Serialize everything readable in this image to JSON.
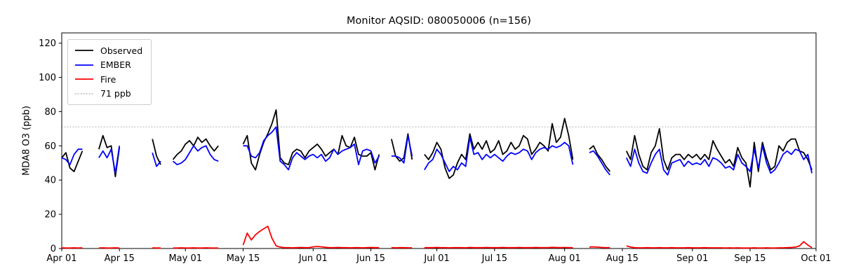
{
  "title": "Monitor AQSID: 080050006 (n=156)",
  "chart_data": {
    "type": "line",
    "title": "Monitor AQSID: 080050006 (n=156)",
    "xlabel": "",
    "ylabel": "MDA8 O3 (ppb)",
    "ylim": [
      0,
      126
    ],
    "yticks": [
      0,
      20,
      40,
      60,
      80,
      100,
      120
    ],
    "x_range_days": 183,
    "x_start_date": "Apr 01",
    "xticks": [
      {
        "day": 0,
        "label": "Apr 01"
      },
      {
        "day": 14,
        "label": "Apr 15"
      },
      {
        "day": 30,
        "label": "May 01"
      },
      {
        "day": 44,
        "label": "May 15"
      },
      {
        "day": 61,
        "label": "Jun 01"
      },
      {
        "day": 75,
        "label": "Jun 15"
      },
      {
        "day": 91,
        "label": "Jul 01"
      },
      {
        "day": 105,
        "label": "Jul 15"
      },
      {
        "day": 122,
        "label": "Aug 01"
      },
      {
        "day": 136,
        "label": "Aug 15"
      },
      {
        "day": 153,
        "label": "Sep 01"
      },
      {
        "day": 167,
        "label": "Sep 15"
      },
      {
        "day": 183,
        "label": "Oct 01"
      }
    ],
    "grid": false,
    "legend_position": "upper-left",
    "threshold": {
      "value": 71,
      "label": "71 ppb",
      "color": "#c8c8c8",
      "dash": "dotted"
    },
    "legend": [
      {
        "label": "Observed",
        "color": "#000000",
        "dash": "solid"
      },
      {
        "label": "EMBER",
        "color": "#0000ff",
        "dash": "solid"
      },
      {
        "label": "Fire",
        "color": "#ff0000",
        "dash": "solid"
      },
      {
        "label": "71 ppb",
        "color": "#c8c8c8",
        "dash": "dotted"
      }
    ],
    "series": [
      {
        "name": "Observed",
        "color": "#000000",
        "values": [
          53,
          56,
          47,
          45,
          51,
          57,
          null,
          null,
          null,
          58,
          66,
          59,
          60,
          42,
          59,
          null,
          null,
          null,
          null,
          null,
          null,
          null,
          64,
          54,
          49,
          null,
          null,
          52,
          55,
          57,
          61,
          63,
          60,
          65,
          62,
          64,
          60,
          57,
          60,
          null,
          null,
          null,
          null,
          null,
          61,
          66,
          50,
          46,
          55,
          62,
          67,
          73,
          81,
          53,
          50,
          49,
          56,
          58,
          57,
          53,
          57,
          59,
          61,
          58,
          54,
          56,
          58,
          55,
          66,
          60,
          59,
          65,
          55,
          54,
          54,
          56,
          46,
          55,
          null,
          null,
          64,
          54,
          51,
          53,
          67,
          52,
          null,
          null,
          55,
          52,
          56,
          62,
          58,
          47,
          41,
          43,
          50,
          55,
          52,
          67,
          58,
          62,
          58,
          63,
          56,
          58,
          63,
          55,
          57,
          62,
          58,
          60,
          66,
          64,
          55,
          58,
          62,
          60,
          57,
          73,
          62,
          65,
          76,
          66,
          52,
          null,
          null,
          null,
          58,
          60,
          55,
          52,
          48,
          45,
          null,
          null,
          null,
          57,
          52,
          66,
          55,
          48,
          46,
          56,
          60,
          70,
          52,
          46,
          53,
          55,
          55,
          52,
          55,
          53,
          55,
          52,
          55,
          52,
          63,
          58,
          54,
          50,
          52,
          48,
          59,
          53,
          50,
          36,
          62,
          45,
          62,
          53,
          46,
          48,
          60,
          57,
          62,
          64,
          64,
          57,
          56,
          52,
          46
        ]
      },
      {
        "name": "EMBER",
        "color": "#0000ff",
        "values": [
          53,
          52,
          49,
          55,
          58,
          58,
          null,
          null,
          null,
          53,
          57,
          53,
          58,
          44,
          60,
          null,
          null,
          null,
          null,
          null,
          null,
          null,
          56,
          48,
          51,
          null,
          null,
          51,
          49,
          50,
          52,
          56,
          60,
          57,
          59,
          60,
          55,
          52,
          51,
          null,
          null,
          null,
          null,
          null,
          60,
          60,
          54,
          53,
          56,
          63,
          66,
          68,
          71,
          51,
          49,
          46,
          53,
          56,
          54,
          52,
          54,
          55,
          53,
          55,
          51,
          53,
          58,
          55,
          57,
          58,
          59,
          61,
          49,
          57,
          58,
          57,
          50,
          54,
          null,
          null,
          54,
          54,
          53,
          50,
          66,
          54,
          null,
          null,
          46,
          50,
          52,
          58,
          55,
          50,
          45,
          48,
          46,
          50,
          48,
          65,
          55,
          56,
          52,
          55,
          53,
          55,
          53,
          51,
          54,
          56,
          55,
          56,
          58,
          57,
          52,
          56,
          58,
          59,
          58,
          60,
          59,
          60,
          62,
          60,
          49,
          null,
          null,
          null,
          56,
          57,
          54,
          50,
          46,
          43,
          null,
          null,
          null,
          53,
          48,
          58,
          50,
          45,
          44,
          50,
          55,
          58,
          46,
          43,
          50,
          51,
          52,
          48,
          51,
          49,
          50,
          49,
          52,
          48,
          53,
          52,
          50,
          47,
          48,
          46,
          55,
          50,
          48,
          45,
          58,
          47,
          60,
          50,
          44,
          46,
          50,
          55,
          57,
          55,
          58,
          57,
          52,
          55,
          44
        ]
      },
      {
        "name": "Fire",
        "color": "#ff0000",
        "values": [
          0.4,
          0.3,
          0.3,
          0.4,
          0.3,
          0.4,
          null,
          null,
          null,
          0.3,
          0.4,
          0.3,
          0.3,
          0.4,
          0.3,
          null,
          null,
          null,
          null,
          null,
          null,
          null,
          0.4,
          0.3,
          0.3,
          null,
          null,
          0.3,
          0.3,
          0.4,
          0.3,
          0.3,
          0.4,
          0.3,
          0.3,
          0.4,
          0.3,
          0.3,
          0.3,
          null,
          null,
          null,
          null,
          null,
          2,
          9,
          5,
          8,
          10,
          11.5,
          13,
          6,
          1.5,
          0.8,
          0.5,
          0.5,
          0.4,
          0.5,
          0.6,
          0.5,
          0.5,
          1.0,
          1.2,
          1.0,
          0.7,
          0.5,
          0.5,
          0.6,
          0.5,
          0.5,
          0.4,
          0.5,
          0.5,
          0.4,
          0.5,
          0.6,
          0.5,
          0.5,
          null,
          null,
          0.5,
          0.4,
          0.5,
          0.5,
          0.4,
          0.4,
          null,
          null,
          0.5,
          0.5,
          0.5,
          0.6,
          0.5,
          0.5,
          0.4,
          0.5,
          0.5,
          0.5,
          0.4,
          0.6,
          0.5,
          0.5,
          0.5,
          0.6,
          0.5,
          0.5,
          0.5,
          0.6,
          0.5,
          0.5,
          0.5,
          0.6,
          0.5,
          0.5,
          0.5,
          0.6,
          0.5,
          0.5,
          0.5,
          0.7,
          0.6,
          0.5,
          0.6,
          0.5,
          0.5,
          null,
          null,
          null,
          0.8,
          1.0,
          0.8,
          0.6,
          0.5,
          0.5,
          null,
          null,
          null,
          1.5,
          0.8,
          0.5,
          0.4,
          0.4,
          0.5,
          0.4,
          0.4,
          0.5,
          0.4,
          0.4,
          0.5,
          0.4,
          0.4,
          0.4,
          0.5,
          0.4,
          0.4,
          0.4,
          0.5,
          0.4,
          0.4,
          0.4,
          0.4,
          0.3,
          0.4,
          0.3,
          0.4,
          0.3,
          0.3,
          0.3,
          0.4,
          0.3,
          0.3,
          0.4,
          0.3,
          0.3,
          0.4,
          0.4,
          0.5,
          0.6,
          0.8,
          1.5,
          4.0,
          2.0,
          0.5
        ]
      }
    ]
  }
}
